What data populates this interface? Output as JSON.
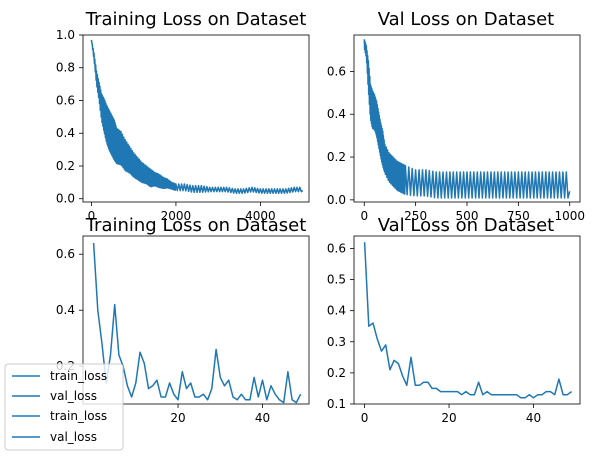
{
  "line_color": "#1f77b4",
  "chart_data": [
    {
      "type": "line",
      "title": "Training Loss on Dataset",
      "xlim": [
        -200,
        5150
      ],
      "ylim": [
        -0.02,
        1.0
      ],
      "xticks": [
        0,
        2000,
        4000
      ],
      "yticks": [
        0.0,
        0.2,
        0.4,
        0.6,
        0.8,
        1.0
      ],
      "ytick_labels": [
        "0.0",
        "0.2",
        "0.4",
        "0.6",
        "0.8",
        "1.0"
      ],
      "series": [
        {
          "x": [
            0,
            60,
            120,
            180,
            240,
            300,
            360,
            420,
            480,
            540,
            600,
            700,
            800,
            900,
            1000,
            1100,
            1200,
            1300,
            1400,
            1500,
            1600,
            1700,
            1800,
            1900,
            2000,
            2200,
            2400,
            2600,
            2800,
            3000,
            3200,
            3400,
            3600,
            3800,
            4000,
            4200,
            4400,
            4600,
            4800,
            5000
          ],
          "y": [
            0.97,
            0.86,
            0.72,
            0.63,
            0.52,
            0.46,
            0.4,
            0.36,
            0.33,
            0.3,
            0.27,
            0.26,
            0.22,
            0.2,
            0.17,
            0.15,
            0.13,
            0.12,
            0.1,
            0.1,
            0.09,
            0.08,
            0.08,
            0.07,
            0.06,
            0.06,
            0.05,
            0.05,
            0.05,
            0.05,
            0.05,
            0.04,
            0.04,
            0.05,
            0.04,
            0.04,
            0.04,
            0.04,
            0.05,
            0.05
          ],
          "spread": [
            0.0,
            0.03,
            0.06,
            0.08,
            0.12,
            0.15,
            0.17,
            0.18,
            0.18,
            0.18,
            0.16,
            0.15,
            0.14,
            0.12,
            0.11,
            0.1,
            0.09,
            0.08,
            0.08,
            0.06,
            0.06,
            0.05,
            0.04,
            0.03,
            0.03,
            0.03,
            0.03,
            0.03,
            0.02,
            0.02,
            0.02,
            0.02,
            0.02,
            0.02,
            0.02,
            0.02,
            0.02,
            0.02,
            0.02,
            0.02
          ]
        }
      ]
    },
    {
      "type": "line",
      "title": "Val Loss on Dataset",
      "xlim": [
        -50,
        1050
      ],
      "ylim": [
        -0.01,
        0.77
      ],
      "xticks": [
        0,
        250,
        500,
        750,
        1000
      ],
      "yticks": [
        0.0,
        0.2,
        0.4,
        0.6
      ],
      "ytick_labels": [
        "0.0",
        "0.2",
        "0.4",
        "0.6"
      ],
      "series": [
        {
          "x": [
            0,
            10,
            20,
            30,
            40,
            50,
            60,
            70,
            80,
            90,
            100,
            120,
            140,
            160,
            180,
            200,
            250,
            300,
            350,
            400,
            450,
            500,
            550,
            600,
            650,
            700,
            750,
            800,
            850,
            900,
            950,
            1000
          ],
          "y": [
            0.72,
            0.68,
            0.55,
            0.42,
            0.38,
            0.37,
            0.34,
            0.29,
            0.24,
            0.2,
            0.16,
            0.12,
            0.1,
            0.08,
            0.07,
            0.06,
            0.05,
            0.05,
            0.04,
            0.04,
            0.04,
            0.04,
            0.04,
            0.04,
            0.04,
            0.04,
            0.04,
            0.04,
            0.04,
            0.04,
            0.04,
            0.04
          ],
          "spread": [
            0.03,
            0.04,
            0.1,
            0.12,
            0.13,
            0.12,
            0.12,
            0.12,
            0.12,
            0.12,
            0.1,
            0.1,
            0.1,
            0.1,
            0.1,
            0.1,
            0.09,
            0.09,
            0.09,
            0.09,
            0.09,
            0.09,
            0.09,
            0.09,
            0.09,
            0.09,
            0.09,
            0.09,
            0.09,
            0.09,
            0.09,
            0.09
          ]
        }
      ]
    },
    {
      "type": "line",
      "title": "Training Loss on Dataset",
      "xlim": [
        -2.5,
        51
      ],
      "ylim": [
        0.065,
        0.665
      ],
      "xticks": [
        20,
        40
      ],
      "yticks": [
        0.2,
        0.4,
        0.6
      ],
      "ytick_labels": [
        "0.2",
        "0.4",
        "0.6"
      ],
      "series": [
        {
          "x": [
            0,
            1,
            2,
            3,
            4,
            5,
            6,
            7,
            8,
            9,
            10,
            11,
            12,
            13,
            14,
            15,
            16,
            17,
            18,
            19,
            20,
            21,
            22,
            23,
            24,
            25,
            26,
            27,
            28,
            29,
            30,
            31,
            32,
            33,
            34,
            35,
            36,
            37,
            38,
            39,
            40,
            41,
            42,
            43,
            44,
            45,
            46,
            47,
            48,
            49
          ],
          "y": [
            0.64,
            0.4,
            0.28,
            0.14,
            0.24,
            0.42,
            0.24,
            0.2,
            0.13,
            0.09,
            0.14,
            0.25,
            0.21,
            0.12,
            0.13,
            0.15,
            0.09,
            0.09,
            0.14,
            0.1,
            0.08,
            0.18,
            0.12,
            0.14,
            0.09,
            0.09,
            0.1,
            0.08,
            0.12,
            0.26,
            0.16,
            0.13,
            0.15,
            0.09,
            0.08,
            0.1,
            0.08,
            0.08,
            0.16,
            0.09,
            0.15,
            0.08,
            0.13,
            0.1,
            0.08,
            0.07,
            0.18,
            0.08,
            0.07,
            0.1
          ]
        }
      ]
    },
    {
      "type": "line",
      "title": "Val Loss on Dataset",
      "xlim": [
        -2.5,
        51
      ],
      "ylim": [
        0.1,
        0.64
      ],
      "xticks": [
        0,
        20,
        40
      ],
      "yticks": [
        0.1,
        0.2,
        0.3,
        0.4,
        0.5,
        0.6
      ],
      "ytick_labels": [
        "0.1",
        "0.2",
        "0.3",
        "0.4",
        "0.5",
        "0.6"
      ],
      "series": [
        {
          "x": [
            0,
            1,
            2,
            3,
            4,
            5,
            6,
            7,
            8,
            9,
            10,
            11,
            12,
            13,
            14,
            15,
            16,
            17,
            18,
            19,
            20,
            21,
            22,
            23,
            24,
            25,
            26,
            27,
            28,
            29,
            30,
            31,
            32,
            33,
            34,
            35,
            36,
            37,
            38,
            39,
            40,
            41,
            42,
            43,
            44,
            45,
            46,
            47,
            48,
            49
          ],
          "y": [
            0.62,
            0.35,
            0.36,
            0.31,
            0.27,
            0.29,
            0.21,
            0.24,
            0.23,
            0.19,
            0.16,
            0.25,
            0.16,
            0.16,
            0.17,
            0.17,
            0.15,
            0.15,
            0.14,
            0.14,
            0.14,
            0.14,
            0.14,
            0.13,
            0.14,
            0.13,
            0.13,
            0.17,
            0.13,
            0.14,
            0.13,
            0.13,
            0.13,
            0.13,
            0.13,
            0.13,
            0.13,
            0.12,
            0.12,
            0.13,
            0.12,
            0.13,
            0.13,
            0.14,
            0.14,
            0.13,
            0.18,
            0.13,
            0.13,
            0.14
          ]
        }
      ]
    }
  ],
  "legend": {
    "entries": [
      "train_loss",
      "val_loss",
      "train_loss",
      "val_loss"
    ]
  }
}
